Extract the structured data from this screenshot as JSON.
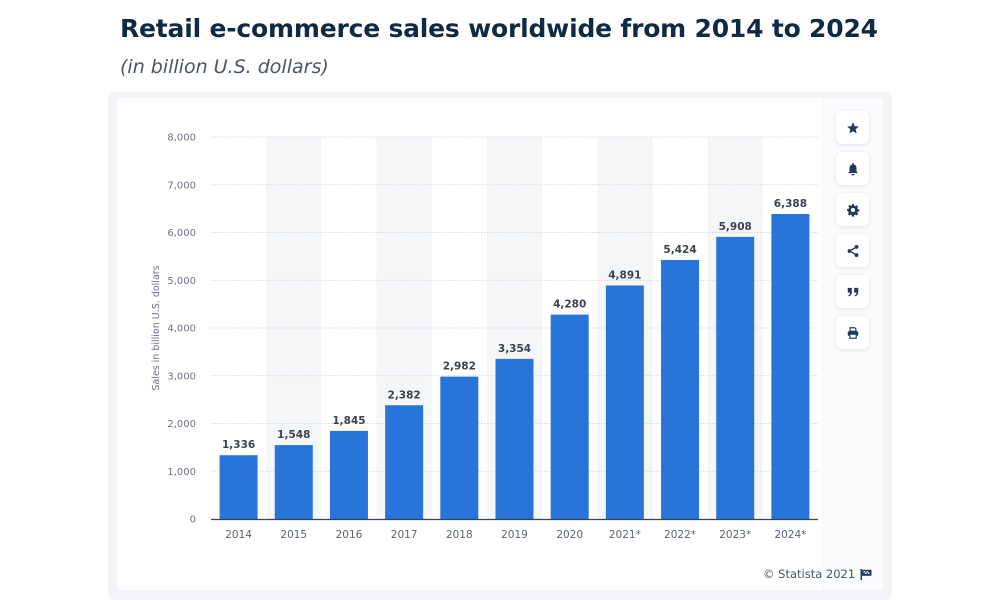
{
  "header": {
    "title": "Retail e-commerce sales worldwide from 2014 to 2024",
    "subtitle": "(in billion U.S. dollars)"
  },
  "toolbar": [
    {
      "name": "favorite",
      "icon": "star-icon"
    },
    {
      "name": "notification",
      "icon": "bell-icon"
    },
    {
      "name": "settings",
      "icon": "gear-icon"
    },
    {
      "name": "share",
      "icon": "share-icon"
    },
    {
      "name": "cite",
      "icon": "quote-icon"
    },
    {
      "name": "print",
      "icon": "printer-icon"
    }
  ],
  "footer": {
    "copyright": "© Statista 2021",
    "icon": "flag-icon"
  },
  "colors": {
    "bar": "#2775d9",
    "title": "#0f2a45",
    "band": "#f5f6f8",
    "grid": "#c9ced6",
    "icon": "#223a5e"
  },
  "chart_data": {
    "type": "bar",
    "title": "Retail e-commerce sales worldwide from 2014 to 2024",
    "subtitle": "(in billion U.S. dollars)",
    "xlabel": "",
    "ylabel": "Sales in billion U.S. dollars",
    "categories": [
      "2014",
      "2015",
      "2016",
      "2017",
      "2018",
      "2019",
      "2020",
      "2021*",
      "2022*",
      "2023*",
      "2024*"
    ],
    "values": [
      1336,
      1548,
      1845,
      2382,
      2982,
      3354,
      4280,
      4891,
      5424,
      5908,
      6388
    ],
    "value_labels": [
      "1,336",
      "1,548",
      "1,845",
      "2,382",
      "2,982",
      "3,354",
      "4,280",
      "4,891",
      "5,424",
      "5,908",
      "6,388"
    ],
    "ylim": [
      0,
      8000
    ],
    "yticks": [
      0,
      1000,
      2000,
      3000,
      4000,
      5000,
      6000,
      7000,
      8000
    ],
    "ytick_labels": [
      "0",
      "1,000",
      "2,000",
      "3,000",
      "4,000",
      "5,000",
      "6,000",
      "7,000",
      "8,000"
    ],
    "grid": true,
    "legend": "none"
  }
}
